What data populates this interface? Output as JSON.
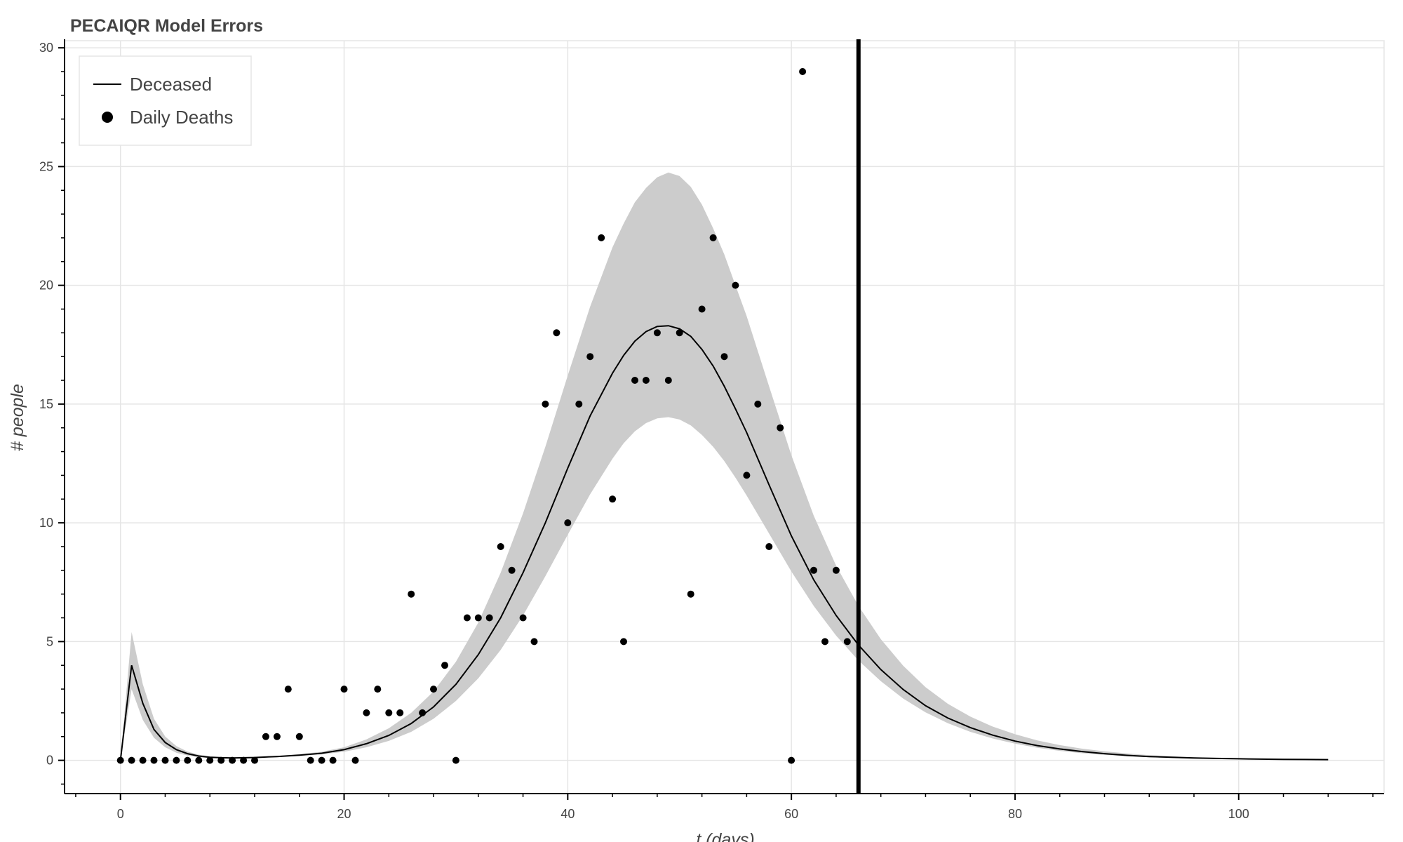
{
  "chart_data": {
    "type": "line",
    "title": "PECAIQR Model Errors",
    "xlabel": "t (days)",
    "ylabel": "# people",
    "xlim": [
      -5,
      113
    ],
    "ylim": [
      -1.4,
      30.3
    ],
    "x_ticks": [
      0,
      20,
      40,
      60,
      80,
      100
    ],
    "y_ticks": [
      0,
      5,
      10,
      15,
      20,
      25,
      30
    ],
    "grid": true,
    "legend_position": "top-left",
    "series": [
      {
        "name": "Deceased",
        "kind": "line",
        "color": "#000000",
        "x": [
          0,
          1,
          2,
          3,
          4,
          5,
          6,
          7,
          8,
          9,
          10,
          12,
          14,
          16,
          18,
          20,
          22,
          24,
          26,
          28,
          30,
          32,
          34,
          36,
          38,
          40,
          42,
          44,
          45,
          46,
          47,
          48,
          49,
          50,
          51,
          52,
          53,
          54,
          55,
          56,
          58,
          60,
          62,
          64,
          66,
          68,
          70,
          72,
          74,
          76,
          78,
          80,
          82,
          84,
          86,
          88,
          90,
          92,
          94,
          96,
          98,
          100,
          102,
          104,
          106,
          108
        ],
        "y": [
          0,
          4.0,
          2.4,
          1.3,
          0.75,
          0.45,
          0.28,
          0.18,
          0.13,
          0.11,
          0.1,
          0.12,
          0.16,
          0.22,
          0.3,
          0.45,
          0.7,
          1.05,
          1.55,
          2.25,
          3.2,
          4.45,
          6.0,
          7.9,
          10.0,
          12.3,
          14.5,
          16.3,
          17.05,
          17.65,
          18.05,
          18.27,
          18.3,
          18.17,
          17.85,
          17.3,
          16.6,
          15.75,
          14.8,
          13.8,
          11.6,
          9.45,
          7.6,
          6.1,
          4.85,
          3.82,
          2.98,
          2.3,
          1.78,
          1.38,
          1.06,
          0.81,
          0.62,
          0.48,
          0.37,
          0.28,
          0.21,
          0.16,
          0.13,
          0.1,
          0.08,
          0.065,
          0.05,
          0.04,
          0.035,
          0.03
        ]
      },
      {
        "name": "",
        "kind": "band",
        "color": "#cccccc",
        "x": [
          0,
          1,
          2,
          3,
          4,
          5,
          6,
          7,
          8,
          9,
          10,
          12,
          14,
          16,
          18,
          20,
          22,
          24,
          26,
          28,
          30,
          32,
          34,
          36,
          38,
          40,
          42,
          44,
          45,
          46,
          47,
          48,
          49,
          50,
          51,
          52,
          53,
          54,
          55,
          56,
          58,
          60,
          62,
          64,
          66,
          68,
          70,
          72,
          74,
          76,
          78,
          80,
          82,
          84,
          86,
          88,
          90,
          92,
          94,
          96,
          98,
          100,
          102,
          104,
          106,
          108
        ],
        "lower": [
          0,
          3.0,
          1.7,
          0.95,
          0.55,
          0.32,
          0.2,
          0.13,
          0.1,
          0.09,
          0.08,
          0.1,
          0.14,
          0.19,
          0.25,
          0.36,
          0.55,
          0.82,
          1.2,
          1.75,
          2.5,
          3.45,
          4.65,
          6.1,
          7.75,
          9.5,
          11.2,
          12.7,
          13.35,
          13.85,
          14.2,
          14.4,
          14.45,
          14.35,
          14.1,
          13.7,
          13.2,
          12.6,
          11.9,
          11.15,
          9.55,
          7.95,
          6.5,
          5.25,
          4.2,
          3.33,
          2.6,
          2.02,
          1.56,
          1.2,
          0.92,
          0.7,
          0.53,
          0.4,
          0.3,
          0.23,
          0.17,
          0.13,
          0.1,
          0.08,
          0.06,
          0.05,
          0.04,
          0.03,
          0.03,
          0.02
        ],
        "upper": [
          0,
          5.4,
          3.2,
          1.75,
          1.0,
          0.6,
          0.37,
          0.24,
          0.17,
          0.14,
          0.13,
          0.15,
          0.19,
          0.26,
          0.36,
          0.55,
          0.88,
          1.35,
          2.0,
          2.9,
          4.15,
          5.8,
          7.9,
          10.4,
          13.2,
          16.2,
          19.1,
          21.6,
          22.6,
          23.5,
          24.1,
          24.55,
          24.75,
          24.6,
          24.15,
          23.4,
          22.4,
          21.3,
          20.0,
          18.7,
          15.75,
          12.85,
          10.3,
          8.2,
          6.5,
          5.1,
          3.98,
          3.08,
          2.38,
          1.84,
          1.42,
          1.1,
          0.84,
          0.64,
          0.49,
          0.38,
          0.29,
          0.22,
          0.17,
          0.13,
          0.1,
          0.08,
          0.06,
          0.05,
          0.04,
          0.04
        ]
      },
      {
        "name": "Daily Deaths",
        "kind": "scatter",
        "color": "#000000",
        "x": [
          0,
          1,
          2,
          3,
          4,
          5,
          6,
          7,
          8,
          9,
          10,
          11,
          12,
          13,
          14,
          15,
          16,
          17,
          18,
          19,
          20,
          21,
          22,
          23,
          24,
          25,
          26,
          27,
          28,
          29,
          30,
          31,
          32,
          33,
          34,
          35,
          36,
          37,
          38,
          39,
          40,
          41,
          42,
          43,
          44,
          45,
          46,
          47,
          48,
          49,
          50,
          51,
          52,
          53,
          54,
          55,
          56,
          57,
          58,
          59,
          60,
          61,
          62,
          63,
          64,
          65
        ],
        "y": [
          0,
          0,
          0,
          0,
          0,
          0,
          0,
          0,
          0,
          0,
          0,
          0,
          0,
          1,
          1,
          3,
          1,
          0,
          0,
          0,
          3,
          0,
          2,
          3,
          2,
          2,
          7,
          2,
          3,
          4,
          0,
          6,
          6,
          6,
          9,
          8,
          6,
          5,
          15,
          18,
          10,
          15,
          17,
          22,
          11,
          5,
          16,
          16,
          18,
          16,
          18,
          7,
          19,
          22,
          17,
          20,
          12,
          15,
          9,
          14,
          0,
          29,
          8,
          5,
          8,
          5
        ]
      },
      {
        "name": "",
        "kind": "vline",
        "color": "#000000",
        "x": 66
      }
    ],
    "legend": [
      "Deceased",
      "Daily Deaths"
    ]
  }
}
